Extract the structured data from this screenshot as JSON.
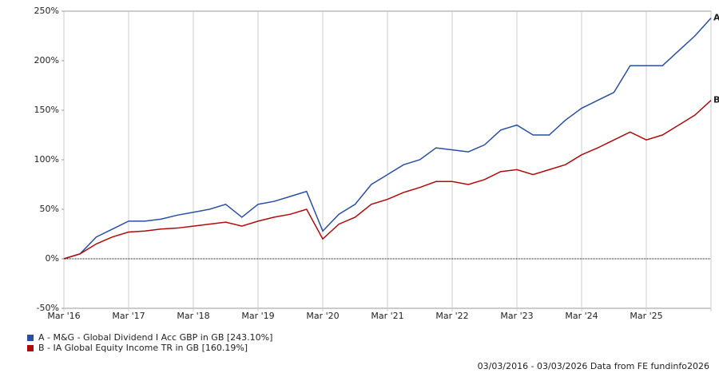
{
  "chart_data": {
    "type": "line",
    "categories": [
      "Mar '16",
      null,
      null,
      null,
      "Mar '17",
      null,
      null,
      null,
      "Mar '18",
      null,
      null,
      null,
      "Mar '19",
      null,
      null,
      null,
      "Mar '20",
      null,
      null,
      null,
      "Mar '21",
      null,
      null,
      null,
      "Mar '22",
      null,
      null,
      null,
      "Mar '23",
      null,
      null,
      null,
      "Mar '24",
      null,
      null,
      null,
      "Mar '25",
      null,
      null,
      null,
      null
    ],
    "series": [
      {
        "name": "A - M&G - Global Dividend I Acc GBP in GB [243.10%]",
        "color": "#2a4ea6",
        "end_label": "A",
        "values": [
          0,
          5,
          22,
          30,
          38,
          38,
          40,
          44,
          47,
          50,
          55,
          42,
          55,
          58,
          63,
          68,
          28,
          45,
          55,
          75,
          85,
          95,
          100,
          112,
          110,
          108,
          115,
          130,
          135,
          125,
          125,
          140,
          152,
          160,
          168,
          195,
          195,
          195,
          210,
          225,
          243
        ]
      },
      {
        "name": "B - IA Global Equity Income TR in GB [160.19%]",
        "color": "#b00a0a",
        "end_label": "B",
        "values": [
          0,
          5,
          15,
          22,
          27,
          28,
          30,
          31,
          33,
          35,
          37,
          33,
          38,
          42,
          45,
          50,
          20,
          35,
          42,
          55,
          60,
          67,
          72,
          78,
          78,
          75,
          80,
          88,
          90,
          85,
          90,
          95,
          105,
          112,
          120,
          128,
          120,
          125,
          135,
          145,
          160
        ]
      }
    ],
    "ylim": [
      -50,
      250
    ],
    "yticks": [
      {
        "value": -50,
        "label": "-50%"
      },
      {
        "value": 0,
        "label": "0%"
      },
      {
        "value": 50,
        "label": "50%"
      },
      {
        "value": 100,
        "label": "100%"
      },
      {
        "value": 150,
        "label": "150%"
      },
      {
        "value": 200,
        "label": "200%"
      },
      {
        "value": 250,
        "label": "250%"
      }
    ],
    "footer": "03/03/2016 - 03/03/2026 Data from FE fundinfo2026"
  }
}
